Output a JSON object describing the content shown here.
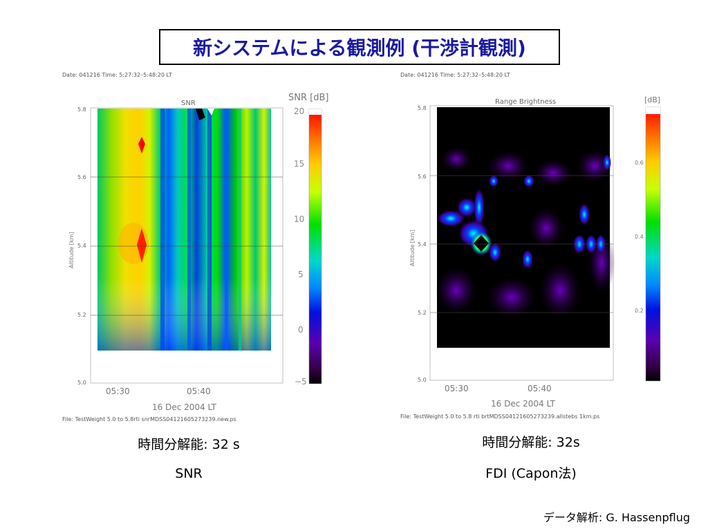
{
  "title": "新システムによる観測例 (干渉計観測)",
  "credit": "データ解析: G. Hassenpflug",
  "chart_data": [
    {
      "type": "heatmap",
      "title": "SNR",
      "header": "Date: 041216  Time: 5:27:32–5:48:20  LT",
      "file": "File: TestWeight  5.0  to  5.8rti  snrMDSS04121605273239.new.ps",
      "xlabel": "16 Dec 2004 LT",
      "ylabel": "Altitude [km]",
      "x_ticks": [
        "05:30",
        "05:40"
      ],
      "y_ticks": [
        "5.0",
        "5.2",
        "5.4",
        "5.6",
        "5.8"
      ],
      "colorbar_label": "SNR [dB]",
      "colorbar_ticks": [
        "20",
        "15",
        "10",
        "5",
        "0",
        "−5"
      ],
      "colorbar_range": [
        -5,
        20
      ],
      "ylim": [
        5.0,
        5.8
      ],
      "caption_resolution": "時間分解能: 32 s",
      "caption_method": "SNR",
      "colors": {
        "low": "#000000",
        "mid": "#00c800",
        "high": "#ff0000"
      }
    },
    {
      "type": "heatmap",
      "title": "Range Brightness",
      "header": "Date: 041216  Time: 5:27:32–5:48:20  LT",
      "file": "File: TestWeight  5.0  to  5.8  rti  brtMDSS04121605273239.allstebs  1km.ps",
      "xlabel": "16 Dec 2004 LT",
      "ylabel": "Altitude [km]",
      "x_ticks": [
        "05:30",
        "05:40"
      ],
      "y_ticks": [
        "5.0",
        "5.2",
        "5.4",
        "5.6",
        "5.8"
      ],
      "colorbar_label": "[dB]",
      "colorbar_ticks": [
        "0.6",
        "0.4",
        "0.2"
      ],
      "ylim": [
        5.0,
        5.8
      ],
      "caption_resolution": "時間分解能: 32s",
      "caption_method": "FDI (Capon法)",
      "colors": {
        "background": "#000000",
        "peak": "#ff0000"
      }
    }
  ]
}
